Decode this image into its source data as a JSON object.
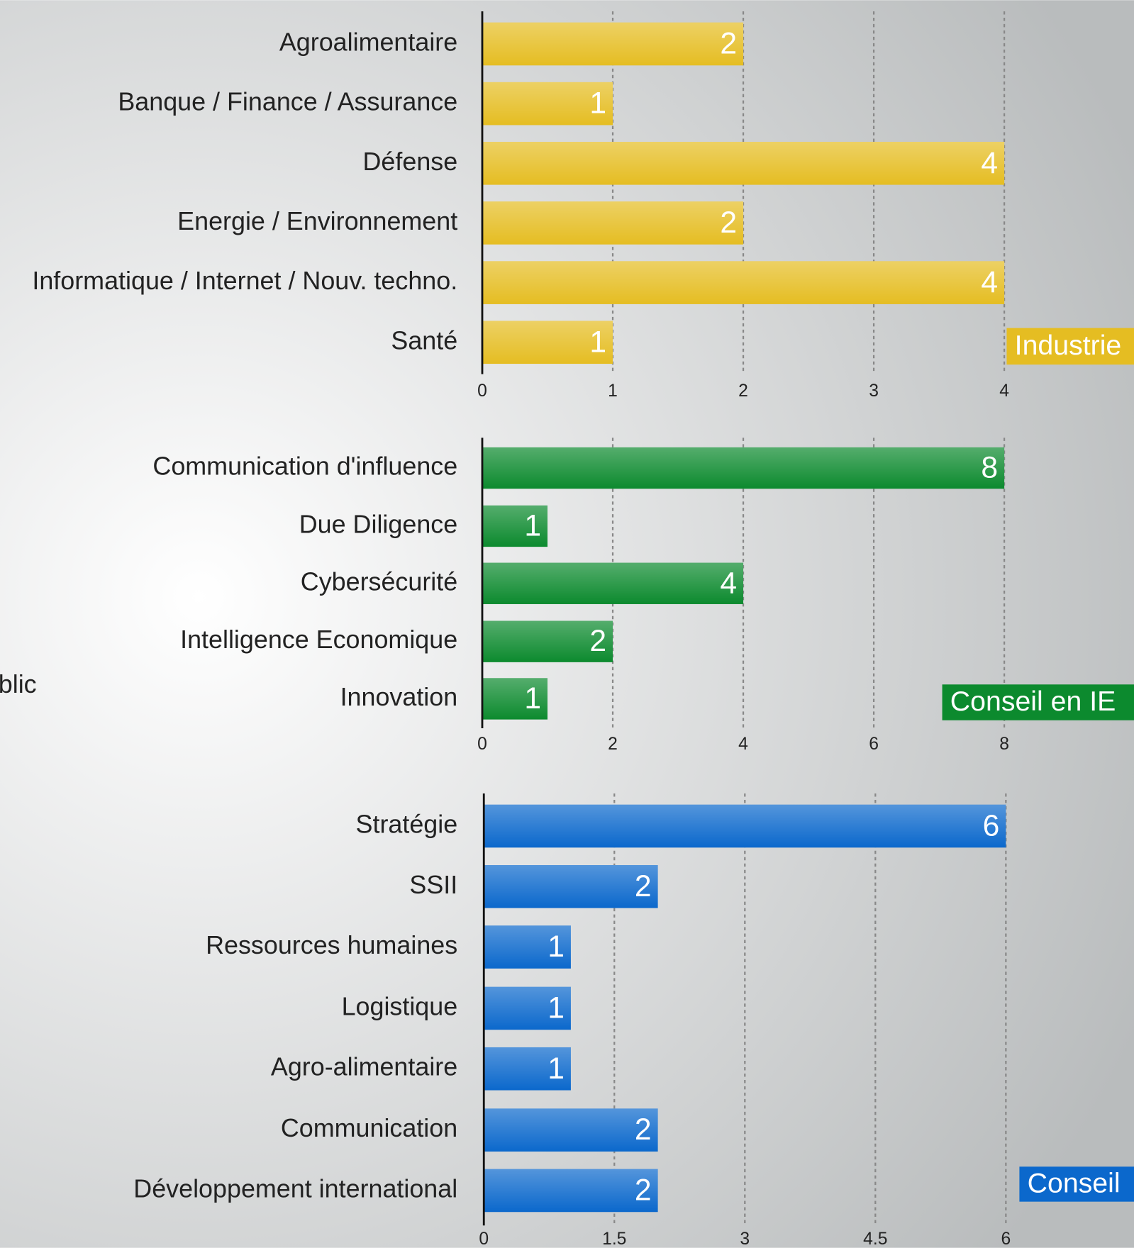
{
  "fragment_text": "blic",
  "chart_data": [
    {
      "type": "bar",
      "label": "Industrie",
      "color": "#e5bd22",
      "categories": [
        "Agroalimentaire",
        "Banque / Finance / Assurance",
        "Défense",
        "Energie / Environnement",
        "Informatique / Internet / Nouv. techno.",
        "Santé"
      ],
      "values": [
        2,
        1,
        4,
        2,
        4,
        1
      ],
      "xlim": [
        0,
        4
      ],
      "xticks": [
        0,
        1,
        2,
        3,
        4
      ],
      "grid": true
    },
    {
      "type": "bar",
      "label": "Conseil en IE",
      "color": "#0c8a2e",
      "categories": [
        "Communication d'influence",
        "Due Diligence",
        "Cybersécurité",
        "Intelligence Economique",
        "Innovation"
      ],
      "values": [
        8,
        1,
        4,
        2,
        1
      ],
      "xlim": [
        0,
        8
      ],
      "xticks": [
        0,
        2,
        4,
        6,
        8
      ],
      "grid": true
    },
    {
      "type": "bar",
      "label": "Conseil",
      "color": "#0b68cc",
      "categories": [
        "Stratégie",
        "SSII",
        "Ressources humaines",
        "Logistique",
        "Agro-alimentaire",
        "Communication",
        "Développement international"
      ],
      "values": [
        6,
        2,
        1,
        1,
        1,
        2,
        2
      ],
      "xlim": [
        0,
        6
      ],
      "xticks": [
        0,
        1.5,
        3,
        4.5,
        6
      ],
      "grid": true
    }
  ]
}
